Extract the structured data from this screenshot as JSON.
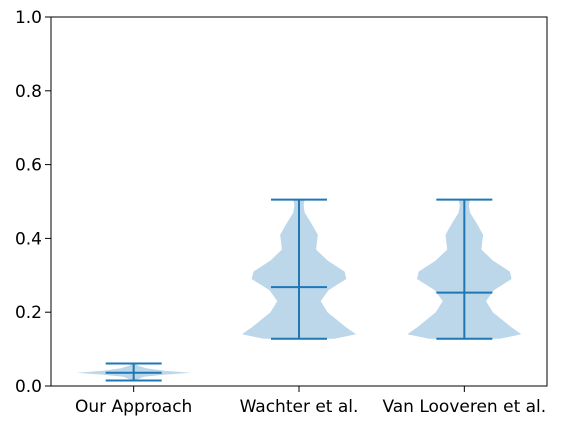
{
  "chart_data": {
    "type": "violin",
    "title": "",
    "xlabel": "",
    "ylabel": "",
    "ylim": [
      0,
      1.0
    ],
    "yticks": [
      "0.0",
      "0.2",
      "0.4",
      "0.6",
      "0.8",
      "1.0"
    ],
    "categories": [
      "Our Approach",
      "Wachter et al.",
      "Van Looveren et al."
    ],
    "grid": false,
    "color": "#1f77b4",
    "body_color": "#bcd6ea",
    "violins": [
      {
        "category": "Our Approach",
        "min": 0.015,
        "mean": 0.036,
        "max": 0.061,
        "profile": [
          [
            0.015,
            0.02
          ],
          [
            0.025,
            0.18
          ],
          [
            0.031,
            0.55
          ],
          [
            0.036,
            1.0
          ],
          [
            0.041,
            0.55
          ],
          [
            0.048,
            0.22
          ],
          [
            0.055,
            0.08
          ],
          [
            0.061,
            0.02
          ]
        ]
      },
      {
        "category": "Wachter et al.",
        "min": 0.128,
        "mean": 0.268,
        "max": 0.505,
        "profile": [
          [
            0.128,
            0.62
          ],
          [
            0.14,
            1.0
          ],
          [
            0.16,
            0.82
          ],
          [
            0.2,
            0.5
          ],
          [
            0.23,
            0.38
          ],
          [
            0.26,
            0.52
          ],
          [
            0.29,
            0.83
          ],
          [
            0.31,
            0.8
          ],
          [
            0.34,
            0.5
          ],
          [
            0.37,
            0.3
          ],
          [
            0.41,
            0.33
          ],
          [
            0.44,
            0.22
          ],
          [
            0.47,
            0.1
          ],
          [
            0.49,
            0.08
          ],
          [
            0.505,
            0.1
          ]
        ]
      },
      {
        "category": "Van Looveren et al.",
        "min": 0.128,
        "mean": 0.253,
        "max": 0.505,
        "profile": [
          [
            0.128,
            0.62
          ],
          [
            0.14,
            1.0
          ],
          [
            0.16,
            0.82
          ],
          [
            0.2,
            0.5
          ],
          [
            0.23,
            0.38
          ],
          [
            0.26,
            0.52
          ],
          [
            0.29,
            0.83
          ],
          [
            0.31,
            0.8
          ],
          [
            0.34,
            0.5
          ],
          [
            0.37,
            0.3
          ],
          [
            0.41,
            0.33
          ],
          [
            0.44,
            0.22
          ],
          [
            0.47,
            0.1
          ],
          [
            0.49,
            0.08
          ],
          [
            0.505,
            0.1
          ]
        ]
      }
    ]
  }
}
